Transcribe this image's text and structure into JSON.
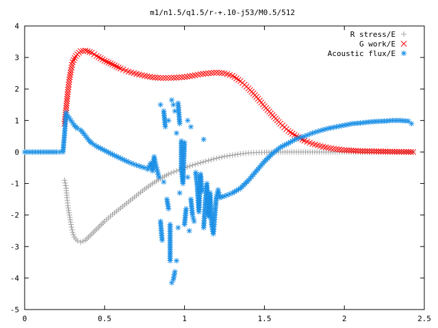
{
  "chart_data": {
    "type": "scatter",
    "title": "m1/n1.5/q1.5/r-+.10-j53/M0.5/512",
    "xlabel": "",
    "ylabel": "",
    "xlim": [
      0,
      2.5
    ],
    "ylim": [
      -5,
      4
    ],
    "x_ticks": [
      "0",
      "0.5",
      "1",
      "1.5",
      "2",
      "2.5"
    ],
    "y_ticks": [
      "-5",
      "-4",
      "-3",
      "-2",
      "-1",
      "0",
      "1",
      "2",
      "3",
      "4"
    ],
    "grid": false,
    "legend_position": "top-right",
    "series": [
      {
        "name": "R stress/E",
        "marker": "plus",
        "color": "#a0a0a0",
        "points": [
          [
            0.25,
            -0.9
          ],
          [
            0.26,
            -1.15
          ],
          [
            0.265,
            -1.45
          ],
          [
            0.27,
            -1.7
          ],
          [
            0.28,
            -2.0
          ],
          [
            0.29,
            -2.3
          ],
          [
            0.3,
            -2.55
          ],
          [
            0.31,
            -2.7
          ],
          [
            0.33,
            -2.82
          ],
          [
            0.35,
            -2.86
          ],
          [
            0.38,
            -2.8
          ],
          [
            0.4,
            -2.7
          ],
          [
            0.45,
            -2.45
          ],
          [
            0.5,
            -2.2
          ],
          [
            0.55,
            -1.98
          ],
          [
            0.6,
            -1.78
          ],
          [
            0.65,
            -1.58
          ],
          [
            0.7,
            -1.38
          ],
          [
            0.75,
            -1.18
          ],
          [
            0.8,
            -1.0
          ],
          [
            0.85,
            -0.84
          ],
          [
            0.9,
            -0.7
          ],
          [
            0.95,
            -0.6
          ],
          [
            1.0,
            -0.5
          ],
          [
            1.05,
            -0.42
          ],
          [
            1.1,
            -0.34
          ],
          [
            1.15,
            -0.27
          ],
          [
            1.2,
            -0.2
          ],
          [
            1.25,
            -0.14
          ],
          [
            1.3,
            -0.1
          ],
          [
            1.35,
            -0.06
          ],
          [
            1.4,
            -0.03
          ],
          [
            1.45,
            -0.02
          ],
          [
            1.5,
            -0.01
          ],
          [
            1.6,
            0
          ],
          [
            1.7,
            0
          ],
          [
            1.8,
            0
          ],
          [
            1.9,
            0
          ],
          [
            2.0,
            0
          ],
          [
            2.1,
            0
          ],
          [
            2.2,
            0
          ],
          [
            2.3,
            0
          ],
          [
            2.43,
            0
          ]
        ]
      },
      {
        "name": "G work/E",
        "marker": "cross",
        "color": "#ff0000",
        "points": [
          [
            0.25,
            0.9
          ],
          [
            0.26,
            1.4
          ],
          [
            0.27,
            1.9
          ],
          [
            0.28,
            2.3
          ],
          [
            0.29,
            2.6
          ],
          [
            0.3,
            2.85
          ],
          [
            0.32,
            3.05
          ],
          [
            0.35,
            3.2
          ],
          [
            0.38,
            3.22
          ],
          [
            0.42,
            3.15
          ],
          [
            0.45,
            3.05
          ],
          [
            0.5,
            2.9
          ],
          [
            0.55,
            2.78
          ],
          [
            0.6,
            2.65
          ],
          [
            0.65,
            2.55
          ],
          [
            0.7,
            2.48
          ],
          [
            0.75,
            2.42
          ],
          [
            0.8,
            2.37
          ],
          [
            0.85,
            2.35
          ],
          [
            0.9,
            2.35
          ],
          [
            0.95,
            2.36
          ],
          [
            1.0,
            2.38
          ],
          [
            1.05,
            2.42
          ],
          [
            1.1,
            2.47
          ],
          [
            1.15,
            2.5
          ],
          [
            1.2,
            2.52
          ],
          [
            1.25,
            2.5
          ],
          [
            1.3,
            2.42
          ],
          [
            1.35,
            2.25
          ],
          [
            1.4,
            2.02
          ],
          [
            1.45,
            1.75
          ],
          [
            1.5,
            1.45
          ],
          [
            1.55,
            1.17
          ],
          [
            1.6,
            0.9
          ],
          [
            1.65,
            0.67
          ],
          [
            1.7,
            0.5
          ],
          [
            1.75,
            0.36
          ],
          [
            1.8,
            0.26
          ],
          [
            1.85,
            0.19
          ],
          [
            1.9,
            0.13
          ],
          [
            1.95,
            0.09
          ],
          [
            2.0,
            0.06
          ],
          [
            2.1,
            0.03
          ],
          [
            2.2,
            0.02
          ],
          [
            2.3,
            0.01
          ],
          [
            2.43,
            0
          ]
        ]
      },
      {
        "name": "Acoustic flux/E",
        "marker": "star",
        "color": "#1a8fe6",
        "points": [
          [
            0,
            0
          ],
          [
            0.05,
            0
          ],
          [
            0.1,
            0
          ],
          [
            0.15,
            0
          ],
          [
            0.2,
            0
          ],
          [
            0.24,
            0
          ],
          [
            0.25,
            0.6
          ],
          [
            0.26,
            1.25
          ],
          [
            0.27,
            1.15
          ],
          [
            0.29,
            1.0
          ],
          [
            0.31,
            0.85
          ],
          [
            0.33,
            0.75
          ],
          [
            0.35,
            0.7
          ],
          [
            0.37,
            0.58
          ],
          [
            0.39,
            0.45
          ],
          [
            0.4,
            0.38
          ],
          [
            0.42,
            0.28
          ],
          [
            0.45,
            0.18
          ],
          [
            0.5,
            0.05
          ],
          [
            0.55,
            -0.08
          ],
          [
            0.6,
            -0.2
          ],
          [
            0.65,
            -0.32
          ],
          [
            0.7,
            -0.42
          ],
          [
            0.75,
            -0.5
          ],
          [
            0.77,
            -0.55
          ],
          [
            0.79,
            -0.35
          ],
          [
            0.8,
            -0.6
          ],
          [
            0.81,
            -0.15
          ],
          [
            0.82,
            -0.4
          ],
          [
            0.84,
            -0.8
          ],
          [
            0.85,
            1.5
          ],
          [
            0.85,
            -2.2
          ],
          [
            0.86,
            -2.8
          ],
          [
            0.87,
            -0.95
          ],
          [
            0.87,
            1.3
          ],
          [
            0.88,
            0.8
          ],
          [
            0.89,
            -1.5
          ],
          [
            0.9,
            -1.8
          ],
          [
            0.9,
            1.0
          ],
          [
            0.91,
            -2.3
          ],
          [
            0.91,
            -3.45
          ],
          [
            0.92,
            1.65
          ],
          [
            0.92,
            -4.15
          ],
          [
            0.93,
            1.5
          ],
          [
            0.93,
            -4.05
          ],
          [
            0.94,
            -3.8
          ],
          [
            0.94,
            1.3
          ],
          [
            0.95,
            -3.45
          ],
          [
            0.95,
            0.6
          ],
          [
            0.96,
            -2.4
          ],
          [
            0.96,
            1.55
          ],
          [
            0.97,
            0.9
          ],
          [
            0.97,
            -1.3
          ],
          [
            0.98,
            0.35
          ],
          [
            0.98,
            -0.5
          ],
          [
            0.99,
            -1.0
          ],
          [
            1.0,
            0.3
          ],
          [
            1.0,
            -2.3
          ],
          [
            1.01,
            -1.8
          ],
          [
            1.02,
            1.0
          ],
          [
            1.02,
            -0.8
          ],
          [
            1.03,
            -2.5
          ],
          [
            1.04,
            0.8
          ],
          [
            1.04,
            -1.5
          ],
          [
            1.05,
            -2.0
          ],
          [
            1.06,
            -2.2
          ],
          [
            1.07,
            -0.65
          ],
          [
            1.08,
            -1.1
          ],
          [
            1.09,
            -1.9
          ],
          [
            1.1,
            -0.7
          ],
          [
            1.11,
            -1.25
          ],
          [
            1.12,
            0.4
          ],
          [
            1.12,
            -2.4
          ],
          [
            1.13,
            -1.6
          ],
          [
            1.14,
            -1.0
          ],
          [
            1.15,
            -2.05
          ],
          [
            1.16,
            -1.3
          ],
          [
            1.17,
            -2.3
          ],
          [
            1.18,
            -2.6
          ],
          [
            1.19,
            -2.0
          ],
          [
            1.2,
            -1.4
          ],
          [
            1.21,
            -1.2
          ],
          [
            1.22,
            -1.45
          ],
          [
            1.25,
            -1.4
          ],
          [
            1.3,
            -1.3
          ],
          [
            1.35,
            -1.15
          ],
          [
            1.4,
            -0.9
          ],
          [
            1.45,
            -0.6
          ],
          [
            1.5,
            -0.3
          ],
          [
            1.55,
            -0.05
          ],
          [
            1.6,
            0.15
          ],
          [
            1.65,
            0.28
          ],
          [
            1.7,
            0.42
          ],
          [
            1.75,
            0.5
          ],
          [
            1.8,
            0.6
          ],
          [
            1.85,
            0.68
          ],
          [
            1.9,
            0.75
          ],
          [
            1.95,
            0.8
          ],
          [
            2.0,
            0.85
          ],
          [
            2.05,
            0.9
          ],
          [
            2.1,
            0.92
          ],
          [
            2.15,
            0.95
          ],
          [
            2.2,
            0.97
          ],
          [
            2.25,
            0.98
          ],
          [
            2.3,
            1.0
          ],
          [
            2.35,
            1.0
          ],
          [
            2.4,
            0.98
          ],
          [
            2.42,
            0.9
          ]
        ]
      }
    ]
  }
}
